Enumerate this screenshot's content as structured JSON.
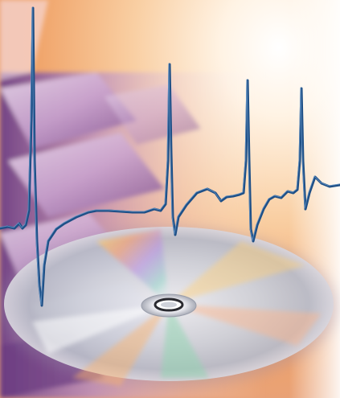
{
  "image": {
    "subject": "ecg-waveform-over-cd-disc-and-keyboard-collage",
    "colors": {
      "background_light": "#fdf6ee",
      "glow": "#ffd9a8",
      "orange": "#f2a868",
      "violet": "#8a5a9a",
      "violet_dark": "#5a3270",
      "lavender": "#d9c2e2",
      "ecg_line": "#1e4f86",
      "ecg_highlight": "#6fa0d0",
      "disc_silver": "#dfe3ea",
      "disc_shadow": "#9fa5b3"
    },
    "icons": [
      "ecg-trace",
      "compact-disc",
      "keyboard-keys"
    ]
  }
}
